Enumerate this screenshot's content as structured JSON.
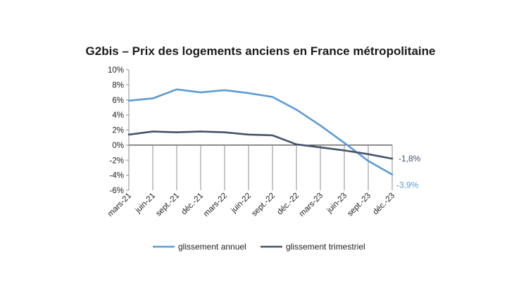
{
  "chart_data": {
    "type": "line",
    "title": "G2bis – Prix des logements anciens en France métropolitaine",
    "xlabel": "",
    "ylabel": "",
    "categories": [
      "mars-21",
      "juin-21",
      "sept.-21",
      "déc.-21",
      "mars-22",
      "juin-22",
      "sept.-22",
      "déc.-22",
      "mars-23",
      "juin-23",
      "sept.-23",
      "déc.-23"
    ],
    "yticks": [
      "10%",
      "8%",
      "6%",
      "4%",
      "2%",
      "0%",
      "-2%",
      "-4%",
      "-6%"
    ],
    "ylim": [
      -6,
      10
    ],
    "grid": false,
    "legend_position": "bottom",
    "series": [
      {
        "name": "glissement annuel",
        "color": "#5b9bd5",
        "values": [
          5.9,
          6.2,
          7.4,
          7.0,
          7.3,
          6.9,
          6.4,
          4.7,
          2.6,
          0.3,
          -2.1,
          -3.9
        ],
        "end_label": "-3,9%"
      },
      {
        "name": "glissement trimestriel",
        "color": "#44546a",
        "values": [
          1.4,
          1.8,
          1.7,
          1.8,
          1.7,
          1.4,
          1.3,
          0.1,
          -0.3,
          -0.7,
          -1.2,
          -1.8
        ],
        "end_label": "-1,8%"
      }
    ]
  }
}
